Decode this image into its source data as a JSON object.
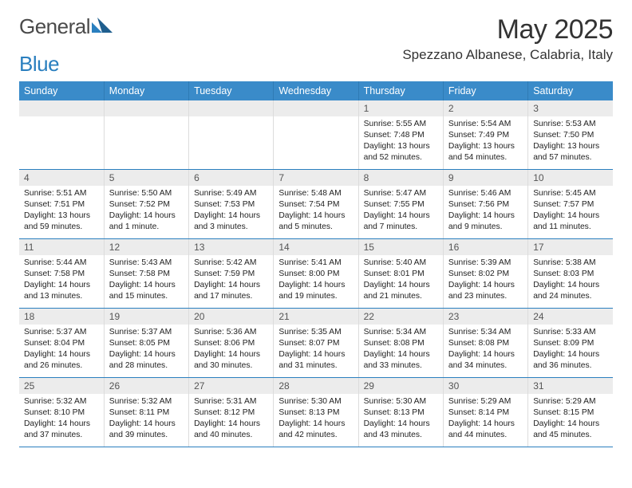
{
  "brand": {
    "left": "General",
    "right": "Blue"
  },
  "title": "May 2025",
  "location": "Spezzano Albanese, Calabria, Italy",
  "colors": {
    "header_bg": "#3a8bc9",
    "header_text": "#ffffff",
    "row_border": "#2a7fbf",
    "daynum_bg": "#ececec",
    "logo_accent": "#2a7fbf"
  },
  "weekdays": [
    "Sunday",
    "Monday",
    "Tuesday",
    "Wednesday",
    "Thursday",
    "Friday",
    "Saturday"
  ],
  "weeks": [
    [
      {
        "n": "",
        "sunrise": "",
        "sunset": "",
        "daylight": ""
      },
      {
        "n": "",
        "sunrise": "",
        "sunset": "",
        "daylight": ""
      },
      {
        "n": "",
        "sunrise": "",
        "sunset": "",
        "daylight": ""
      },
      {
        "n": "",
        "sunrise": "",
        "sunset": "",
        "daylight": ""
      },
      {
        "n": "1",
        "sunrise": "Sunrise: 5:55 AM",
        "sunset": "Sunset: 7:48 PM",
        "daylight": "Daylight: 13 hours and 52 minutes."
      },
      {
        "n": "2",
        "sunrise": "Sunrise: 5:54 AM",
        "sunset": "Sunset: 7:49 PM",
        "daylight": "Daylight: 13 hours and 54 minutes."
      },
      {
        "n": "3",
        "sunrise": "Sunrise: 5:53 AM",
        "sunset": "Sunset: 7:50 PM",
        "daylight": "Daylight: 13 hours and 57 minutes."
      }
    ],
    [
      {
        "n": "4",
        "sunrise": "Sunrise: 5:51 AM",
        "sunset": "Sunset: 7:51 PM",
        "daylight": "Daylight: 13 hours and 59 minutes."
      },
      {
        "n": "5",
        "sunrise": "Sunrise: 5:50 AM",
        "sunset": "Sunset: 7:52 PM",
        "daylight": "Daylight: 14 hours and 1 minute."
      },
      {
        "n": "6",
        "sunrise": "Sunrise: 5:49 AM",
        "sunset": "Sunset: 7:53 PM",
        "daylight": "Daylight: 14 hours and 3 minutes."
      },
      {
        "n": "7",
        "sunrise": "Sunrise: 5:48 AM",
        "sunset": "Sunset: 7:54 PM",
        "daylight": "Daylight: 14 hours and 5 minutes."
      },
      {
        "n": "8",
        "sunrise": "Sunrise: 5:47 AM",
        "sunset": "Sunset: 7:55 PM",
        "daylight": "Daylight: 14 hours and 7 minutes."
      },
      {
        "n": "9",
        "sunrise": "Sunrise: 5:46 AM",
        "sunset": "Sunset: 7:56 PM",
        "daylight": "Daylight: 14 hours and 9 minutes."
      },
      {
        "n": "10",
        "sunrise": "Sunrise: 5:45 AM",
        "sunset": "Sunset: 7:57 PM",
        "daylight": "Daylight: 14 hours and 11 minutes."
      }
    ],
    [
      {
        "n": "11",
        "sunrise": "Sunrise: 5:44 AM",
        "sunset": "Sunset: 7:58 PM",
        "daylight": "Daylight: 14 hours and 13 minutes."
      },
      {
        "n": "12",
        "sunrise": "Sunrise: 5:43 AM",
        "sunset": "Sunset: 7:58 PM",
        "daylight": "Daylight: 14 hours and 15 minutes."
      },
      {
        "n": "13",
        "sunrise": "Sunrise: 5:42 AM",
        "sunset": "Sunset: 7:59 PM",
        "daylight": "Daylight: 14 hours and 17 minutes."
      },
      {
        "n": "14",
        "sunrise": "Sunrise: 5:41 AM",
        "sunset": "Sunset: 8:00 PM",
        "daylight": "Daylight: 14 hours and 19 minutes."
      },
      {
        "n": "15",
        "sunrise": "Sunrise: 5:40 AM",
        "sunset": "Sunset: 8:01 PM",
        "daylight": "Daylight: 14 hours and 21 minutes."
      },
      {
        "n": "16",
        "sunrise": "Sunrise: 5:39 AM",
        "sunset": "Sunset: 8:02 PM",
        "daylight": "Daylight: 14 hours and 23 minutes."
      },
      {
        "n": "17",
        "sunrise": "Sunrise: 5:38 AM",
        "sunset": "Sunset: 8:03 PM",
        "daylight": "Daylight: 14 hours and 24 minutes."
      }
    ],
    [
      {
        "n": "18",
        "sunrise": "Sunrise: 5:37 AM",
        "sunset": "Sunset: 8:04 PM",
        "daylight": "Daylight: 14 hours and 26 minutes."
      },
      {
        "n": "19",
        "sunrise": "Sunrise: 5:37 AM",
        "sunset": "Sunset: 8:05 PM",
        "daylight": "Daylight: 14 hours and 28 minutes."
      },
      {
        "n": "20",
        "sunrise": "Sunrise: 5:36 AM",
        "sunset": "Sunset: 8:06 PM",
        "daylight": "Daylight: 14 hours and 30 minutes."
      },
      {
        "n": "21",
        "sunrise": "Sunrise: 5:35 AM",
        "sunset": "Sunset: 8:07 PM",
        "daylight": "Daylight: 14 hours and 31 minutes."
      },
      {
        "n": "22",
        "sunrise": "Sunrise: 5:34 AM",
        "sunset": "Sunset: 8:08 PM",
        "daylight": "Daylight: 14 hours and 33 minutes."
      },
      {
        "n": "23",
        "sunrise": "Sunrise: 5:34 AM",
        "sunset": "Sunset: 8:08 PM",
        "daylight": "Daylight: 14 hours and 34 minutes."
      },
      {
        "n": "24",
        "sunrise": "Sunrise: 5:33 AM",
        "sunset": "Sunset: 8:09 PM",
        "daylight": "Daylight: 14 hours and 36 minutes."
      }
    ],
    [
      {
        "n": "25",
        "sunrise": "Sunrise: 5:32 AM",
        "sunset": "Sunset: 8:10 PM",
        "daylight": "Daylight: 14 hours and 37 minutes."
      },
      {
        "n": "26",
        "sunrise": "Sunrise: 5:32 AM",
        "sunset": "Sunset: 8:11 PM",
        "daylight": "Daylight: 14 hours and 39 minutes."
      },
      {
        "n": "27",
        "sunrise": "Sunrise: 5:31 AM",
        "sunset": "Sunset: 8:12 PM",
        "daylight": "Daylight: 14 hours and 40 minutes."
      },
      {
        "n": "28",
        "sunrise": "Sunrise: 5:30 AM",
        "sunset": "Sunset: 8:13 PM",
        "daylight": "Daylight: 14 hours and 42 minutes."
      },
      {
        "n": "29",
        "sunrise": "Sunrise: 5:30 AM",
        "sunset": "Sunset: 8:13 PM",
        "daylight": "Daylight: 14 hours and 43 minutes."
      },
      {
        "n": "30",
        "sunrise": "Sunrise: 5:29 AM",
        "sunset": "Sunset: 8:14 PM",
        "daylight": "Daylight: 14 hours and 44 minutes."
      },
      {
        "n": "31",
        "sunrise": "Sunrise: 5:29 AM",
        "sunset": "Sunset: 8:15 PM",
        "daylight": "Daylight: 14 hours and 45 minutes."
      }
    ]
  ]
}
